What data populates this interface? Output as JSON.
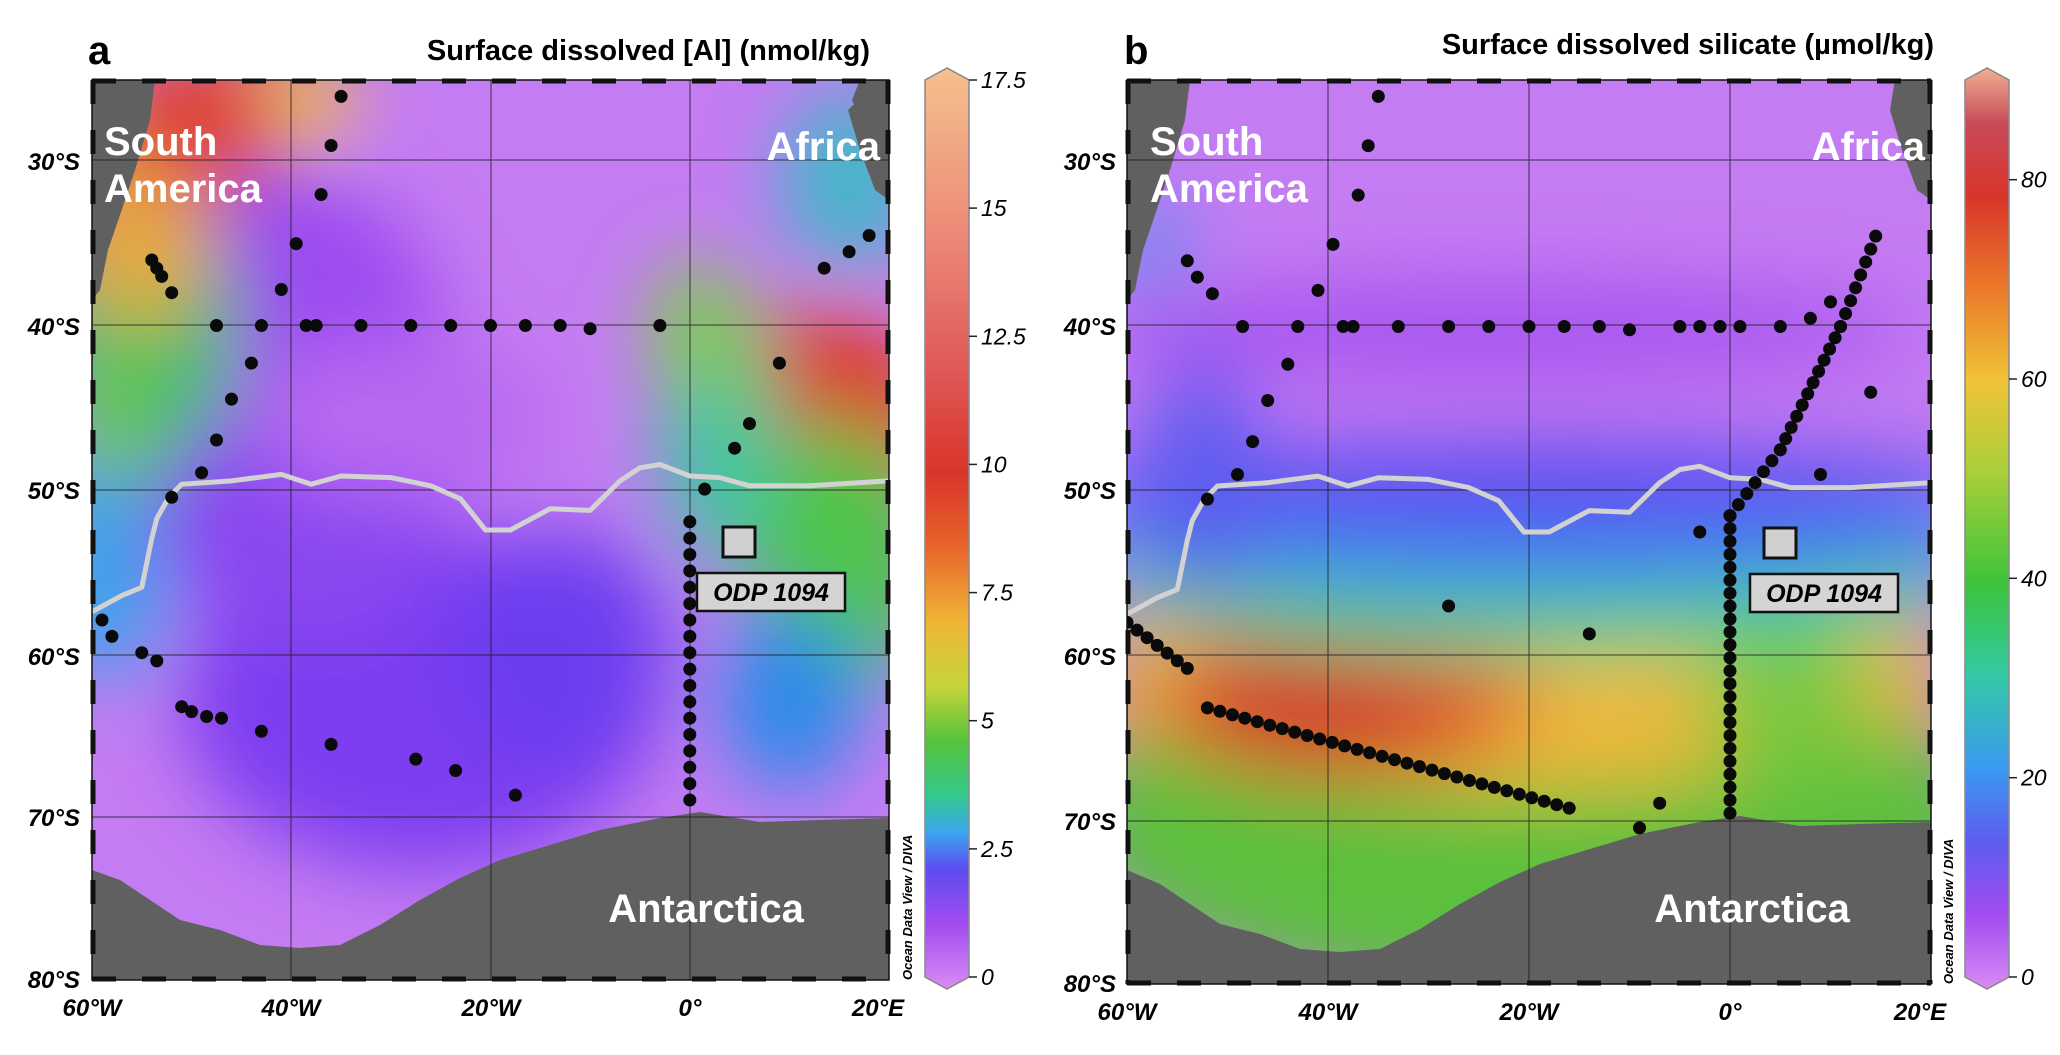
{
  "panels": [
    {
      "id": "a",
      "label": "a",
      "title": "Surface dissolved [Al] (nmol/kg)",
      "colorbar": {
        "ticks": [
          "17.5",
          "15",
          "12.5",
          "10",
          "7.5",
          "5",
          "2.5",
          "0"
        ],
        "min": 0,
        "max": 17.5
      },
      "site_label": "ODP 1094",
      "credit": "Ocean Data View / DIVA",
      "stations": {
        "sa_transect": [
          [
            -54,
            -36
          ],
          [
            -53.5,
            -36.5
          ],
          [
            -53,
            -37
          ],
          [
            -52,
            -38
          ],
          [
            -47.5,
            -40
          ],
          [
            -43,
            -40
          ],
          [
            -38.5,
            -40
          ],
          [
            -37.5,
            -40
          ],
          [
            -33,
            -40
          ],
          [
            -28,
            -40
          ],
          [
            -24,
            -40
          ],
          [
            -20,
            -40
          ],
          [
            -16.5,
            -40
          ],
          [
            -13,
            -40
          ],
          [
            -10,
            -40.2
          ],
          [
            -3,
            -40
          ]
        ],
        "mar_ridge": [
          [
            -35,
            -26
          ],
          [
            -36,
            -29
          ],
          [
            -37,
            -32
          ],
          [
            -39.5,
            -35
          ],
          [
            -41,
            -37.8
          ],
          [
            -44,
            -42.3
          ],
          [
            -46,
            -44.5
          ],
          [
            -47.5,
            -47
          ],
          [
            -49,
            -49
          ],
          [
            -52,
            -50.5
          ]
        ],
        "af_transect": [
          [
            18,
            -34.5
          ],
          [
            16,
            -35.5
          ],
          [
            13.5,
            -36.5
          ],
          [
            9,
            -42.3
          ],
          [
            6,
            -46
          ],
          [
            4.5,
            -47.5
          ],
          [
            1.5,
            -50
          ]
        ],
        "gm_line": [
          [
            0,
            -52
          ],
          [
            0,
            -53
          ],
          [
            0,
            -54
          ],
          [
            0,
            -55
          ],
          [
            0,
            -56
          ],
          [
            0,
            -57
          ],
          [
            0,
            -58
          ],
          [
            0,
            -59
          ],
          [
            0,
            -60
          ],
          [
            0,
            -61
          ],
          [
            0,
            -62
          ],
          [
            0,
            -63
          ],
          [
            0,
            -64
          ],
          [
            0,
            -65
          ],
          [
            0,
            -66
          ],
          [
            0,
            -67
          ],
          [
            0,
            -68
          ],
          [
            0,
            -69
          ]
        ],
        "scattered": [
          [
            -59,
            -58
          ],
          [
            -58,
            -59
          ],
          [
            -55,
            -60
          ],
          [
            -53.5,
            -60.5
          ],
          [
            -51,
            -63.3
          ],
          [
            -50,
            -63.6
          ],
          [
            -48.5,
            -63.9
          ],
          [
            -47,
            -64
          ],
          [
            -43,
            -64.8
          ],
          [
            -36,
            -65.6
          ],
          [
            -27.5,
            -66.5
          ],
          [
            -23.5,
            -67.2
          ],
          [
            -17.5,
            -68.7
          ]
        ]
      }
    },
    {
      "id": "b",
      "label": "b",
      "title": "Surface dissolved silicate (µmol/kg)",
      "colorbar": {
        "ticks": [
          "80",
          "60",
          "40",
          "20",
          "0"
        ],
        "min": 0,
        "max": 90
      },
      "site_label": "ODP 1094",
      "credit": "Ocean Data View / DIVA",
      "stations": {
        "sa_transect": [
          [
            -54,
            -36
          ],
          [
            -53,
            -37
          ],
          [
            -51.5,
            -38
          ],
          [
            -48.5,
            -40
          ],
          [
            -43,
            -40
          ],
          [
            -38.5,
            -40
          ],
          [
            -37.5,
            -40
          ],
          [
            -33,
            -40
          ],
          [
            -28,
            -40
          ],
          [
            -24,
            -40
          ],
          [
            -20,
            -40
          ],
          [
            -16.5,
            -40
          ],
          [
            -13,
            -40
          ],
          [
            -10,
            -40.2
          ],
          [
            -5,
            -40
          ],
          [
            -3,
            -40
          ],
          [
            -1,
            -40
          ],
          [
            1,
            -40
          ],
          [
            5,
            -40
          ],
          [
            8,
            -39.5
          ],
          [
            10,
            -38.5
          ]
        ],
        "mar_ridge": [
          [
            -35,
            -26
          ],
          [
            -36,
            -29
          ],
          [
            -37,
            -32
          ],
          [
            -39.5,
            -35
          ],
          [
            -41,
            -37.8
          ],
          [
            -44,
            -42.3
          ],
          [
            -46,
            -44.5
          ],
          [
            -47.5,
            -47
          ],
          [
            -49,
            -49
          ],
          [
            -52,
            -50.5
          ]
        ],
        "af_transect": [
          [
            14,
            -44
          ]
        ],
        "scattered": [
          [
            -28,
            -57
          ],
          [
            -14,
            -58.7
          ],
          [
            -3,
            -52.5
          ],
          [
            9,
            -49
          ],
          [
            -7,
            -69
          ],
          [
            -9,
            -70.5
          ]
        ]
      },
      "dense_tracks": {
        "diagonal": [
          [
            -60,
            -58
          ],
          [
            -54,
            -60.8
          ]
        ],
        "weddell": [
          [
            -52,
            -63.2
          ],
          [
            -16,
            -69.3
          ]
        ],
        "meridian": [
          [
            0,
            -69.6
          ],
          [
            0,
            -51.5
          ]
        ],
        "agulhas": [
          [
            0,
            -51.5
          ],
          [
            5,
            -47.5
          ],
          [
            11,
            -40
          ],
          [
            14.5,
            -34.5
          ]
        ]
      }
    }
  ],
  "shared": {
    "lon_ticks": [
      "60°W",
      "40°W",
      "20°W",
      "0°",
      "20°E"
    ],
    "lat_ticks": [
      "30°S",
      "40°S",
      "50°S",
      "60°S",
      "70°S",
      "80°S"
    ],
    "land_labels": {
      "south_america_1": "South",
      "south_america_2": "America",
      "africa": "Africa",
      "antarctica": "Antarctica"
    },
    "lon_range": [
      -60,
      20
    ],
    "lat_range": [
      -80,
      -25
    ],
    "polar_front": [
      [
        -60,
        -57.5
      ],
      [
        -57,
        -56.5
      ],
      [
        -55,
        -56
      ],
      [
        -54,
        -53
      ],
      [
        -53.5,
        -51.8
      ],
      [
        -52.3,
        -50.5
      ],
      [
        -51,
        -49.7
      ],
      [
        -46,
        -49.5
      ],
      [
        -41,
        -49.1
      ],
      [
        -38,
        -49.7
      ],
      [
        -35,
        -49.2
      ],
      [
        -30,
        -49.3
      ],
      [
        -26,
        -49.8
      ],
      [
        -23,
        -50.6
      ],
      [
        -20.5,
        -52.5
      ],
      [
        -18,
        -52.5
      ],
      [
        -14,
        -51.2
      ],
      [
        -10,
        -51.3
      ],
      [
        -7,
        -49.5
      ],
      [
        -5,
        -48.7
      ],
      [
        -3,
        -48.5
      ],
      [
        0,
        -49.2
      ],
      [
        3,
        -49.3
      ],
      [
        6,
        -49.8
      ],
      [
        12,
        -49.8
      ],
      [
        20,
        -49.5
      ]
    ],
    "site_lonlat": [
      5,
      -53.2
    ]
  }
}
